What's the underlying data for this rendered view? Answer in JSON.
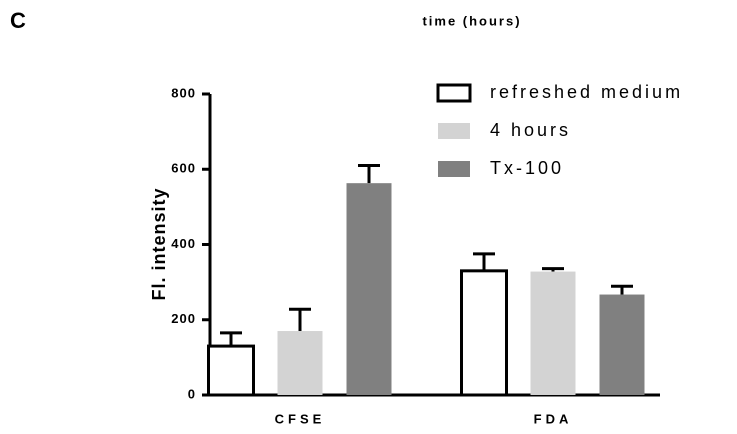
{
  "panel_label": "C",
  "chart_data": {
    "type": "bar",
    "title": "time (hours)",
    "y_label": "Fl. intensity",
    "categories": [
      "CFSE",
      "FDA"
    ],
    "series": [
      {
        "name": "refreshed medium",
        "color": "#ffffff",
        "values": [
          130,
          330
        ],
        "errors": [
          35,
          45
        ]
      },
      {
        "name": "4 hours",
        "color": "#d3d3d3",
        "values": [
          170,
          328
        ],
        "errors": [
          58,
          8
        ]
      },
      {
        "name": "Tx-100",
        "color": "#808080",
        "values": [
          563,
          267
        ],
        "errors": [
          47,
          22
        ]
      }
    ],
    "ylim": [
      0,
      800
    ],
    "yticks": [
      0,
      200,
      400,
      600,
      800
    ],
    "legend": "upper right"
  }
}
